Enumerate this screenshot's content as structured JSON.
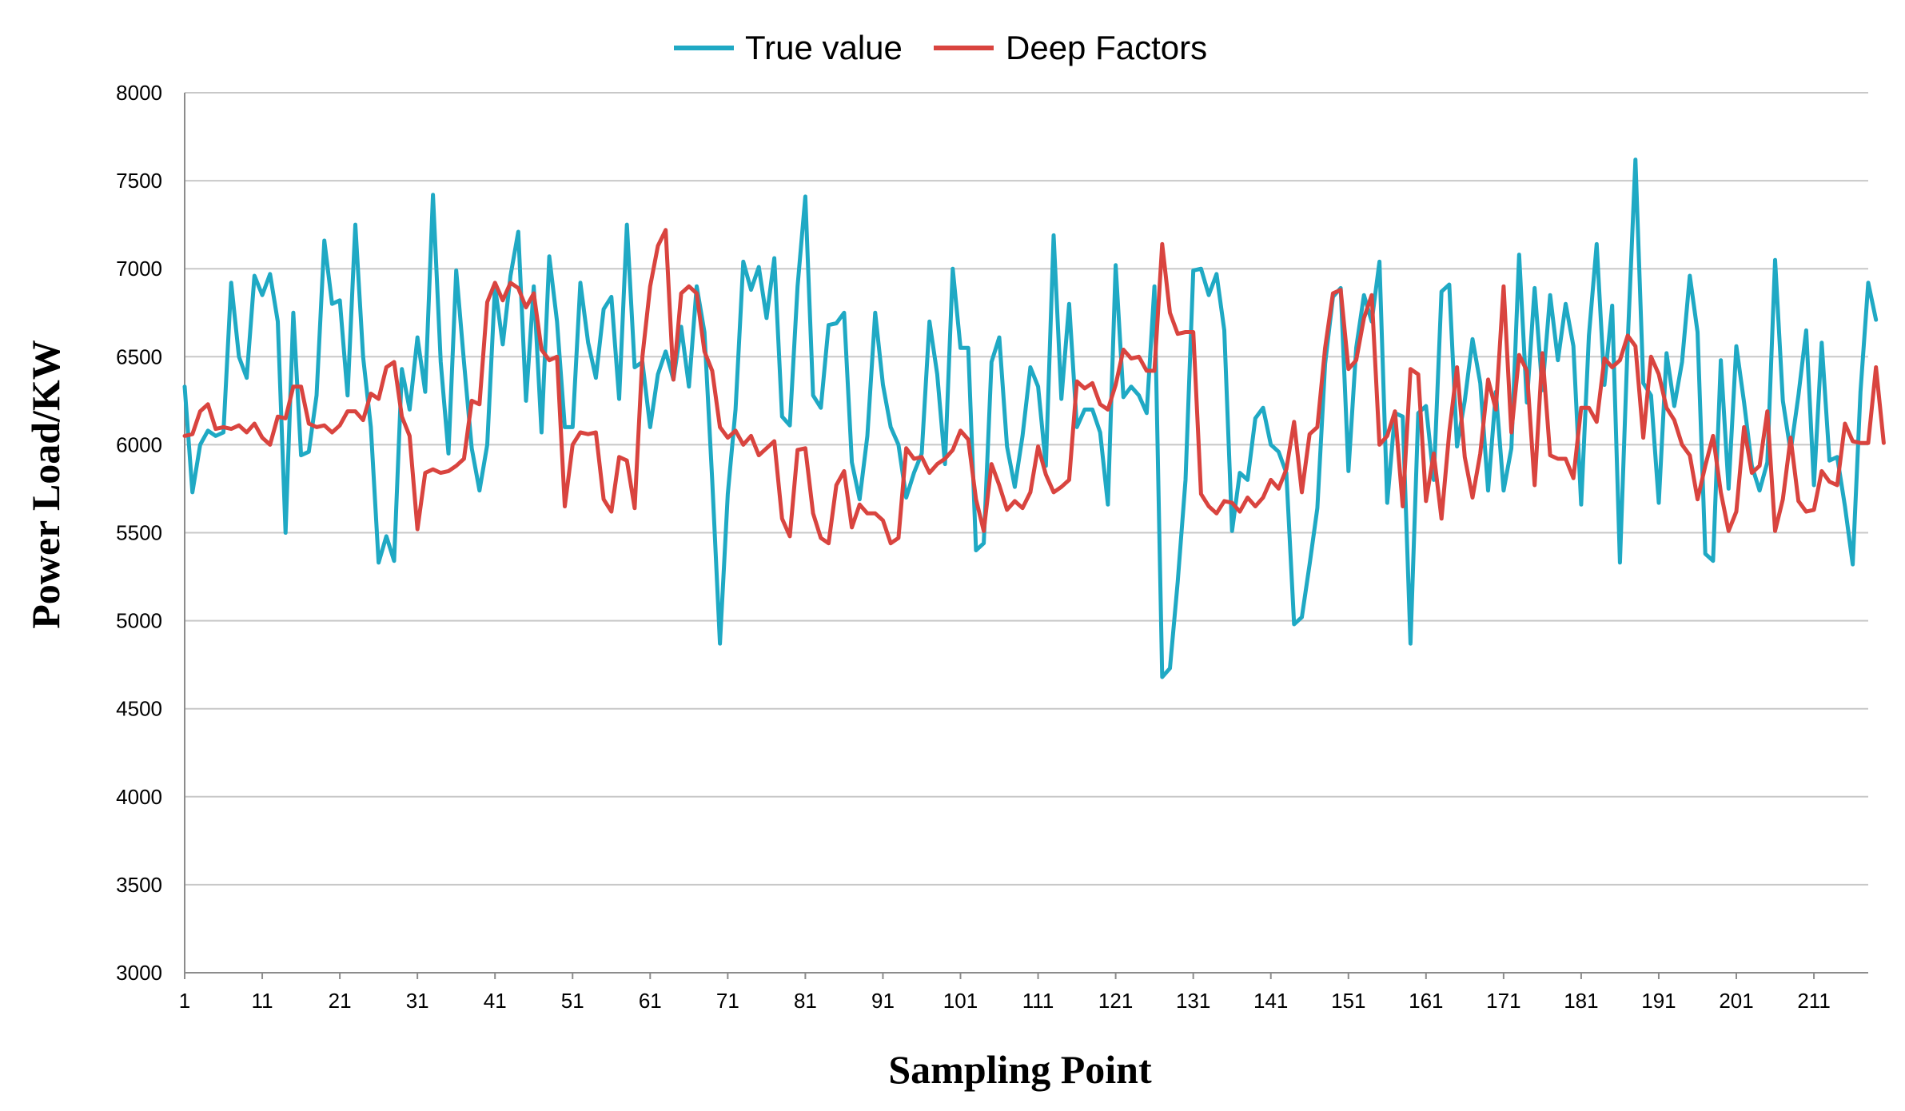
{
  "chart_data": {
    "type": "line",
    "title": "",
    "xlabel": "Sampling Point",
    "ylabel": "Power Load/KW",
    "ylim": [
      3000,
      8000
    ],
    "y_ticks": [
      3000,
      3500,
      4000,
      4500,
      5000,
      5500,
      6000,
      6500,
      7000,
      7500,
      8000
    ],
    "y_tick_labels": [
      "3000",
      "3500",
      "4000",
      "4500",
      "5000",
      "5500",
      "6000",
      "6500",
      "7000",
      "7500",
      "8000"
    ],
    "xlim": [
      1,
      218
    ],
    "x_ticks": [
      1,
      11,
      21,
      31,
      41,
      51,
      61,
      71,
      81,
      91,
      101,
      111,
      121,
      131,
      141,
      151,
      161,
      171,
      181,
      191,
      201,
      211
    ],
    "x_tick_labels": [
      "1",
      "11",
      "21",
      "31",
      "41",
      "51",
      "61",
      "71",
      "81",
      "91",
      "101",
      "111",
      "121",
      "131",
      "141",
      "151",
      "161",
      "171",
      "181",
      "191",
      "201",
      "211"
    ],
    "grid": true,
    "legend_position": "top-center",
    "series": [
      {
        "name": "True value",
        "color": "#1fa9c4",
        "x_start": 1,
        "values": [
          6330,
          5730,
          6000,
          6080,
          6050,
          6070,
          6920,
          6500,
          6380,
          6960,
          6850,
          6970,
          6700,
          5500,
          6750,
          5940,
          5960,
          6280,
          7160,
          6800,
          6820,
          6280,
          7250,
          6500,
          6100,
          5330,
          5480,
          5340,
          6430,
          6200,
          6610,
          6300,
          7420,
          6470,
          5950,
          6990,
          6470,
          5980,
          5740,
          6000,
          6900,
          6570,
          6960,
          7210,
          6250,
          6900,
          6070,
          7070,
          6700,
          6100,
          6100,
          6920,
          6580,
          6380,
          6770,
          6840,
          6260,
          7250,
          6440,
          6470,
          6100,
          6400,
          6530,
          6370,
          6670,
          6330,
          6900,
          6640,
          5800,
          4870,
          5720,
          6200,
          7040,
          6880,
          7010,
          6720,
          7060,
          6160,
          6110,
          6900,
          7410,
          6280,
          6210,
          6680,
          6690,
          6750,
          5900,
          5690,
          6050,
          6750,
          6340,
          6100,
          6000,
          5700,
          5840,
          5950,
          6700,
          6400,
          5890,
          7000,
          6550,
          6550,
          5400,
          5440,
          6470,
          6610,
          5990,
          5760,
          6050,
          6440,
          6330,
          5880,
          7190,
          6260,
          6800,
          6100,
          6200,
          6200,
          6070,
          5660,
          7020,
          6270,
          6330,
          6280,
          6180,
          6900,
          4680,
          4730,
          5220,
          5800,
          6990,
          7000,
          6850,
          6970,
          6650,
          5510,
          5840,
          5800,
          6150,
          6210,
          6000,
          5960,
          5840,
          4980,
          5020,
          5320,
          5640,
          6460,
          6840,
          6890,
          5850,
          6550,
          6850,
          6700,
          7040,
          5670,
          6180,
          6160,
          4870,
          6180,
          6220,
          5800,
          6870,
          6910,
          5990,
          6250,
          6600,
          6350,
          5740,
          6300,
          5740,
          5980,
          7080,
          6240,
          6890,
          6310,
          6850,
          6480,
          6800,
          6560,
          5660,
          6620,
          7140,
          6340,
          6790,
          5330,
          6580,
          7620,
          6350,
          6280,
          5670,
          6520,
          6220,
          6470,
          6960,
          6640,
          5380,
          5340,
          6480,
          5750,
          6560,
          6240,
          5880,
          5740,
          5900,
          7050,
          6250,
          5960,
          6280,
          6650,
          5770,
          6580,
          5910,
          5930,
          5650,
          5320,
          6300,
          6920,
          6710
        ]
      },
      {
        "name": "Deep Factors",
        "color": "#d9443f",
        "x_start": 1,
        "values": [
          6050,
          6060,
          6190,
          6230,
          6090,
          6100,
          6090,
          6110,
          6070,
          6120,
          6040,
          6000,
          6160,
          6150,
          6330,
          6330,
          6120,
          6100,
          6110,
          6070,
          6110,
          6190,
          6190,
          6140,
          6290,
          6260,
          6440,
          6470,
          6160,
          6050,
          5520,
          5840,
          5860,
          5840,
          5850,
          5880,
          5920,
          6250,
          6230,
          6810,
          6920,
          6820,
          6920,
          6890,
          6780,
          6860,
          6540,
          6480,
          6500,
          5650,
          6000,
          6070,
          6060,
          6070,
          5690,
          5620,
          5930,
          5910,
          5640,
          6500,
          6900,
          7130,
          7220,
          6370,
          6860,
          6900,
          6860,
          6530,
          6420,
          6100,
          6040,
          6080,
          6000,
          6050,
          5940,
          5980,
          6020,
          5580,
          5480,
          5970,
          5980,
          5610,
          5470,
          5440,
          5770,
          5850,
          5530,
          5660,
          5610,
          5610,
          5570,
          5440,
          5470,
          5980,
          5920,
          5930,
          5840,
          5890,
          5920,
          5970,
          6080,
          6030,
          5690,
          5510,
          5890,
          5770,
          5630,
          5680,
          5640,
          5730,
          5990,
          5830,
          5730,
          5760,
          5800,
          6360,
          6320,
          6350,
          6230,
          6200,
          6340,
          6540,
          6490,
          6500,
          6420,
          6420,
          7140,
          6750,
          6630,
          6640,
          6640,
          5720,
          5650,
          5610,
          5680,
          5670,
          5620,
          5700,
          5650,
          5700,
          5800,
          5750,
          5860,
          6130,
          5730,
          6060,
          6100,
          6550,
          6860,
          6880,
          6430,
          6480,
          6720,
          6850,
          6000,
          6050,
          6190,
          5650,
          6430,
          6400,
          5680,
          5950,
          5580,
          6070,
          6440,
          5930,
          5700,
          5950,
          6370,
          6200,
          6900,
          6070,
          6510,
          6420,
          5770,
          6520,
          5940,
          5920,
          5920,
          5810,
          6210,
          6210,
          6130,
          6490,
          6440,
          6480,
          6620,
          6560,
          6040,
          6500,
          6400,
          6210,
          6140,
          6000,
          5940,
          5690,
          5880,
          6050,
          5730,
          5510,
          5620,
          6100,
          5840,
          5880,
          6190,
          5510,
          5690,
          6040,
          5680,
          5620,
          5630,
          5850,
          5790,
          5770,
          6120,
          6020,
          6010,
          6010,
          6440,
          6010
        ]
      }
    ]
  }
}
